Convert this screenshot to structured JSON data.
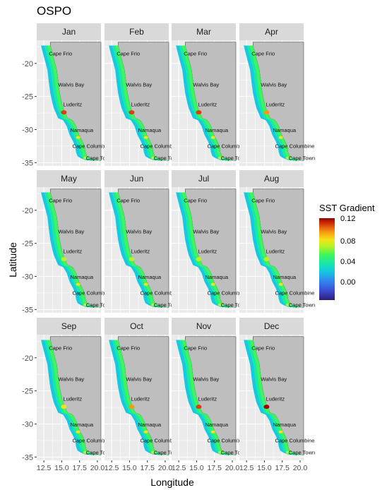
{
  "title": "OSPO",
  "xlabel": "Longitude",
  "ylabel": "Latitude",
  "legend": {
    "title": "SST Gradient",
    "ticks": [
      "0.12",
      "0.08",
      "0.04",
      "0.00"
    ],
    "range": [
      -0.02,
      0.12
    ],
    "colors": [
      "#2c1e79",
      "#3b4fd6",
      "#2f8af0",
      "#16c8e0",
      "#18e8a8",
      "#3ef55a",
      "#b8f225",
      "#f7e218",
      "#f79a12",
      "#d9400c",
      "#990000"
    ]
  },
  "chart_data": {
    "type": "heatmap",
    "facets": [
      "Jan",
      "Feb",
      "Mar",
      "Apr",
      "May",
      "Jun",
      "Jul",
      "Aug",
      "Sep",
      "Oct",
      "Nov",
      "Dec"
    ],
    "x_ticks": [
      "12.5",
      "15.0",
      "17.5",
      "20.0"
    ],
    "y_ticks": [
      "-20",
      "-25",
      "-30",
      "-35"
    ],
    "xlim": [
      11.5,
      20.5
    ],
    "ylim": [
      -35.5,
      -16.5
    ],
    "place_labels": [
      "Cape Frio",
      "Walvis Bay",
      "Luderitz",
      "Namaqua",
      "Cape Columbine",
      "Cape Town"
    ],
    "land_color": "#bebebe",
    "panel_bg": "#ebebeb",
    "strip_bg": "#d9d9d9",
    "hotspot_levels": [
      0.1,
      0.11,
      0.1,
      0.09,
      0.07,
      0.06,
      0.06,
      0.07,
      0.08,
      0.09,
      0.1,
      0.12
    ]
  }
}
